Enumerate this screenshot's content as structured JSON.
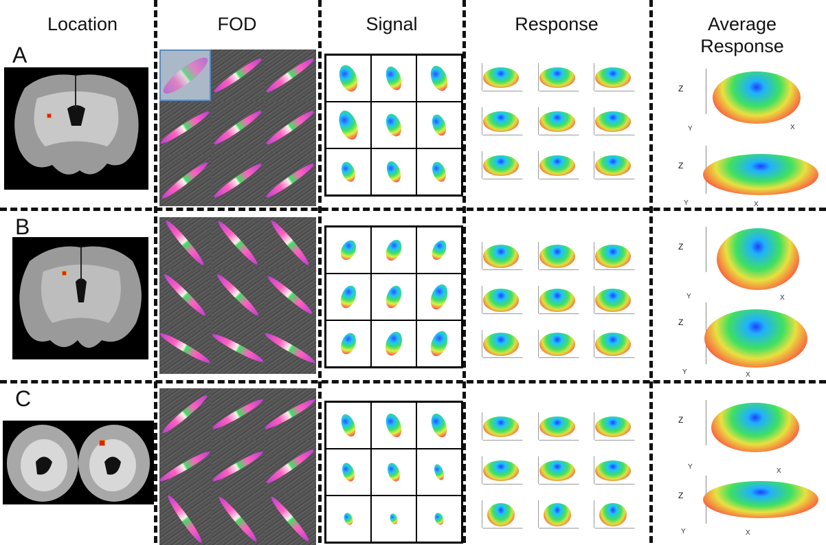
{
  "headers": {
    "location": "Location",
    "fod": "FOD",
    "signal": "Signal",
    "response": "Response",
    "average_line1": "Average",
    "average_line2": "Response"
  },
  "rows": {
    "a": "A",
    "b": "B",
    "c": "C"
  },
  "avg_axis": {
    "z": "Z",
    "y": "Y",
    "x": "X"
  },
  "colors": {
    "dash": "#111111",
    "marker_fill": "#e02020",
    "marker_border": "#e0a000"
  }
}
